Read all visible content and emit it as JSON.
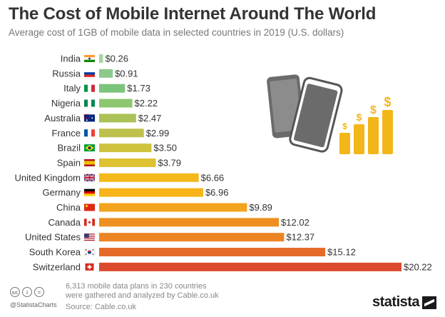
{
  "header": {
    "title": "The Cost of Mobile Internet Around The World",
    "subtitle": "Average cost of 1GB of mobile data in selected countries in 2019 (U.S. dollars)"
  },
  "chart_data": {
    "type": "bar",
    "orientation": "horizontal",
    "title": "The Cost of Mobile Internet Around The World",
    "subtitle": "Average cost of 1GB of mobile data in selected countries in 2019 (U.S. dollars)",
    "categories": [
      "India",
      "Russia",
      "Italy",
      "Nigeria",
      "Australia",
      "France",
      "Brazil",
      "Spain",
      "United Kingdom",
      "Germany",
      "China",
      "Canada",
      "United States",
      "South Korea",
      "Switzerland"
    ],
    "values": [
      0.26,
      0.91,
      1.73,
      2.22,
      2.47,
      2.99,
      3.5,
      3.79,
      6.66,
      6.96,
      9.89,
      12.02,
      12.37,
      15.12,
      20.22
    ],
    "value_labels": [
      "$0.26",
      "$0.91",
      "$1.73",
      "$2.22",
      "$2.47",
      "$2.99",
      "$3.50",
      "$3.79",
      "$6.66",
      "$6.96",
      "$9.89",
      "$12.02",
      "$12.37",
      "$15.12",
      "$20.22"
    ],
    "bar_colors": [
      "#a8d5a2",
      "#8cc98a",
      "#7cc47c",
      "#8cc770",
      "#aac257",
      "#bec04c",
      "#cfc23f",
      "#ddc232",
      "#f5b81c",
      "#f7b51a",
      "#f3a31d",
      "#ee8f22",
      "#ec8424",
      "#e56a2a",
      "#dc4a2e"
    ],
    "flags": [
      "in",
      "ru",
      "it",
      "ng",
      "au",
      "fr",
      "br",
      "es",
      "gb",
      "de",
      "cn",
      "ca",
      "us",
      "kr",
      "ch"
    ],
    "xlim": [
      0,
      20.22
    ],
    "grid": false,
    "xlabel": "",
    "ylabel": ""
  },
  "footer": {
    "note_line1": "6,313 mobile data plans in 230 countries",
    "note_line2": "were gathered and analyzed by Cable.co.uk",
    "source": "Source: Cable.co.uk",
    "handle": "@StatistaCharts",
    "brand": "statista",
    "license_icons": [
      "cc",
      "i",
      "="
    ]
  },
  "illustration": {
    "icon": "phones-with-rising-dollar-bars",
    "dollar_symbol": "$",
    "color_accent": "#f2b619",
    "color_phone": "#6b6b6b"
  }
}
